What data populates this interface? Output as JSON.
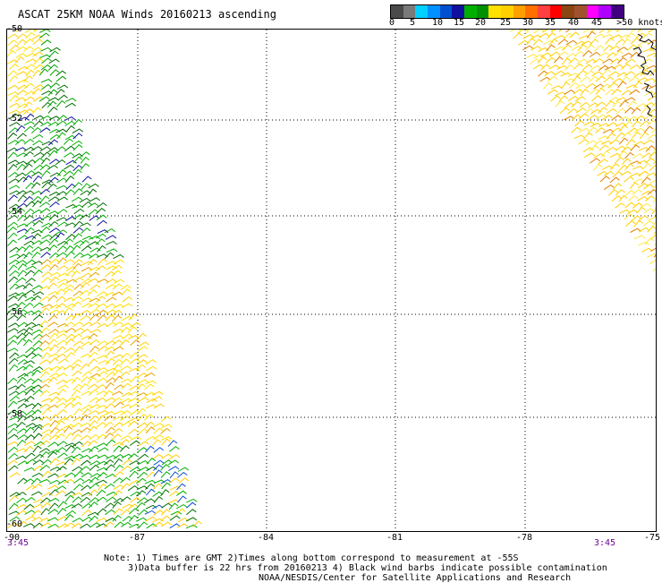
{
  "title": "ASCAT 25KM NOAA Winds 20160213 ascending",
  "legend": {
    "colors": [
      "#4a4a4a",
      "#7a7a7a",
      "#00d0ff",
      "#0090ff",
      "#0050d0",
      "#1010a0",
      "#00b000",
      "#009000",
      "#ffe000",
      "#ffd000",
      "#ffa000",
      "#ff7000",
      "#ff4040",
      "#ff0000",
      "#8b4513",
      "#a0522d",
      "#ff00ff",
      "#b000ff",
      "#400080"
    ],
    "labels": [
      "0",
      "5",
      "10",
      "15",
      "20",
      "25",
      "30",
      "35",
      "40",
      "45",
      ">50 knots"
    ]
  },
  "lat_labels": [
    "-50",
    "-52",
    "-54",
    "-56",
    "-58",
    "-60"
  ],
  "lon_labels": [
    "-87",
    "-84",
    "-81",
    "-78",
    "-75"
  ],
  "corner_label": "-90",
  "times": [
    "3:45",
    "3:45"
  ],
  "notes": [
    "Note: 1) Times are GMT 2)Times along bottom correspond to measurement at -55S",
    "3)Data buffer is 22 hrs from 20160213 4) Black wind barbs indicate possible contamination",
    "NOAA/NESDIS/Center for Satellite Applications and Research"
  ]
}
